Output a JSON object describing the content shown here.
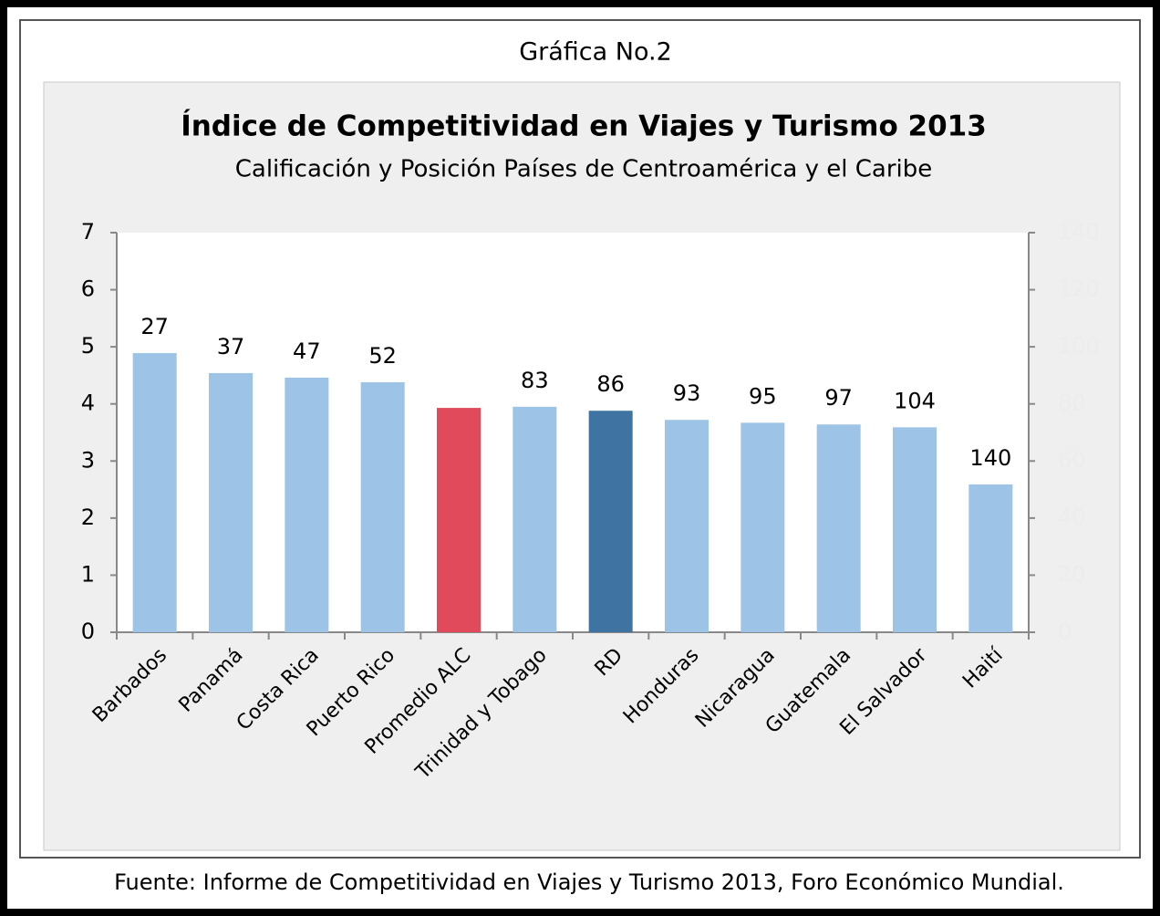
{
  "header": "Gráfica No.2",
  "chart_data": {
    "type": "bar",
    "title": "Índice de Competitividad en Viajes y Turismo 2013",
    "subtitle": "Calificación y Posición Países de Centroamérica y el Caribe",
    "categories": [
      "Barbados",
      "Panamá",
      "Costa Rica",
      "Puerto Rico",
      "Promedio ALC",
      "Trinidad y Tobago",
      "RD",
      "Honduras",
      "Nicaragua",
      "Guatemala",
      "El Salvador",
      "Haití"
    ],
    "values": [
      4.89,
      4.54,
      4.46,
      4.38,
      3.93,
      3.95,
      3.88,
      3.72,
      3.67,
      3.64,
      3.59,
      2.59
    ],
    "colors": [
      "#9dc3e6",
      "#9dc3e6",
      "#9dc3e6",
      "#9dc3e6",
      "#e04a5a",
      "#9dc3e6",
      "#3f73a2",
      "#9dc3e6",
      "#9dc3e6",
      "#9dc3e6",
      "#9dc3e6",
      "#9dc3e6"
    ],
    "ranks": [
      27,
      37,
      47,
      52,
      null,
      83,
      86,
      93,
      95,
      97,
      104,
      140
    ],
    "ylim": [
      0,
      7
    ],
    "yticks": [
      0,
      1,
      2,
      3,
      4,
      5,
      6,
      7
    ],
    "y2lim": [
      0,
      140
    ],
    "y2ticks": [
      0,
      20,
      40,
      60,
      80,
      100,
      120,
      140
    ],
    "grid": false
  },
  "footer": "Fuente: Informe de Competitividad en Viajes y Turismo 2013, Foro Económico Mundial."
}
